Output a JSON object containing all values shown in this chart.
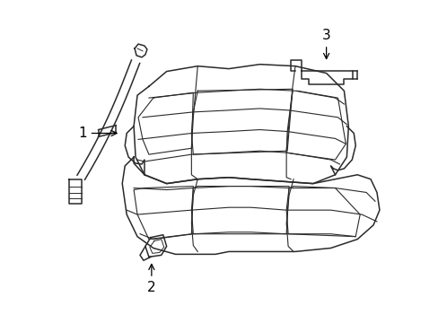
{
  "background_color": "#ffffff",
  "line_color": "#2a2a2a",
  "label_color": "#000000",
  "lw_main": 1.1,
  "lw_detail": 0.8
}
